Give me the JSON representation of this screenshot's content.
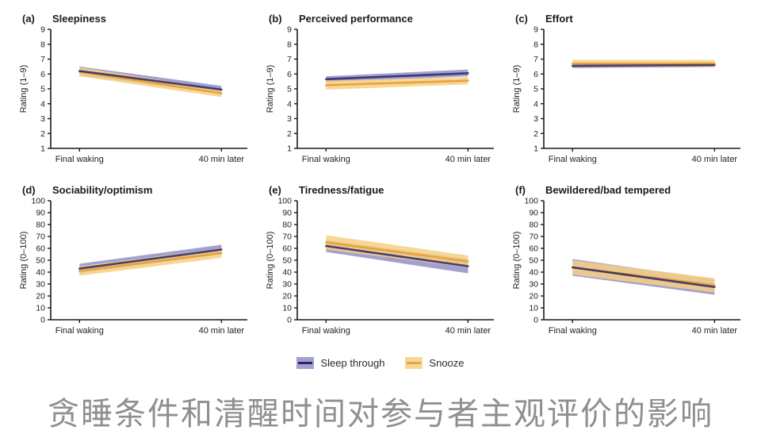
{
  "caption": {
    "text": "贪睡条件和清醒时间对参与者主观评价的影响"
  },
  "colors": {
    "sleep_through_line": "#29256b",
    "sleep_through_band": "#938fc5",
    "snooze_line": "#e8a33c",
    "snooze_band": "#f6d083",
    "axis": "#1a1a1a",
    "tick_text": "#222222",
    "caption_text": "#8f8f8f",
    "background": "#ffffff"
  },
  "legend": {
    "items": [
      {
        "label": "Sleep through",
        "line_color": "#29256b",
        "band_color": "#938fc5"
      },
      {
        "label": "Snooze",
        "line_color": "#e8a33c",
        "band_color": "#f6d083"
      }
    ]
  },
  "chart_data": {
    "type": "line",
    "grid": false,
    "legend_position": "bottom-center",
    "x_categories": [
      "Final waking",
      "40 min later"
    ],
    "panels": [
      {
        "label": "(a)",
        "title": "Sleepiness",
        "ylabel": "Rating (1–9)",
        "ylim": [
          1,
          9
        ],
        "ytick_step": 1,
        "series": [
          {
            "name": "Sleep through",
            "values": [
              6.2,
              4.95
            ],
            "band_low": [
              5.9,
              4.7
            ],
            "band_high": [
              6.5,
              5.2
            ]
          },
          {
            "name": "Snooze",
            "values": [
              6.15,
              4.7
            ],
            "band_low": [
              5.85,
              4.45
            ],
            "band_high": [
              6.45,
              4.95
            ]
          }
        ]
      },
      {
        "label": "(b)",
        "title": "Perceived performance",
        "ylabel": "Rating (1–9)",
        "ylim": [
          1,
          9
        ],
        "ytick_step": 1,
        "series": [
          {
            "name": "Sleep through",
            "values": [
              5.65,
              6.05
            ],
            "band_low": [
              5.45,
              5.85
            ],
            "band_high": [
              5.85,
              6.3
            ]
          },
          {
            "name": "Snooze",
            "values": [
              5.25,
              5.55
            ],
            "band_low": [
              4.95,
              5.3
            ],
            "band_high": [
              5.55,
              5.8
            ]
          }
        ]
      },
      {
        "label": "(c)",
        "title": "Effort",
        "ylabel": "Rating (1–9)",
        "ylim": [
          1,
          9
        ],
        "ytick_step": 1,
        "series": [
          {
            "name": "Sleep through",
            "values": [
              6.55,
              6.6
            ],
            "band_low": [
              6.4,
              6.45
            ],
            "band_high": [
              6.7,
              6.75
            ]
          },
          {
            "name": "Snooze",
            "values": [
              6.7,
              6.7
            ],
            "band_low": [
              6.5,
              6.45
            ],
            "band_high": [
              6.95,
              6.95
            ]
          }
        ]
      },
      {
        "label": "(d)",
        "title": "Sociability/optimism",
        "ylabel": "Rating (0–100)",
        "ylim": [
          0,
          100
        ],
        "ytick_step": 10,
        "series": [
          {
            "name": "Sleep through",
            "values": [
              43,
              59
            ],
            "band_low": [
              39,
              55
            ],
            "band_high": [
              47,
              63
            ]
          },
          {
            "name": "Snooze",
            "values": [
              41,
              56
            ],
            "band_low": [
              37,
              52
            ],
            "band_high": [
              45,
              60
            ]
          }
        ]
      },
      {
        "label": "(e)",
        "title": "Tiredness/fatigue",
        "ylabel": "Rating (0–100)",
        "ylim": [
          0,
          100
        ],
        "ytick_step": 10,
        "series": [
          {
            "name": "Sleep through",
            "values": [
              62,
              45
            ],
            "band_low": [
              57,
              39
            ],
            "band_high": [
              67,
              51
            ]
          },
          {
            "name": "Snooze",
            "values": [
              65,
              49
            ],
            "band_low": [
              59,
              44
            ],
            "band_high": [
              71,
              54
            ]
          }
        ]
      },
      {
        "label": "(f)",
        "title": "Bewildered/bad tempered",
        "ylabel": "Rating (0–100)",
        "ylim": [
          0,
          100
        ],
        "ytick_step": 10,
        "series": [
          {
            "name": "Sleep through",
            "values": [
              44,
              27.5
            ],
            "band_low": [
              37,
              21
            ],
            "band_high": [
              51,
              34
            ]
          },
          {
            "name": "Snooze",
            "values": [
              44,
              29
            ],
            "band_low": [
              38,
              23
            ],
            "band_high": [
              50,
              35
            ]
          }
        ]
      }
    ]
  }
}
